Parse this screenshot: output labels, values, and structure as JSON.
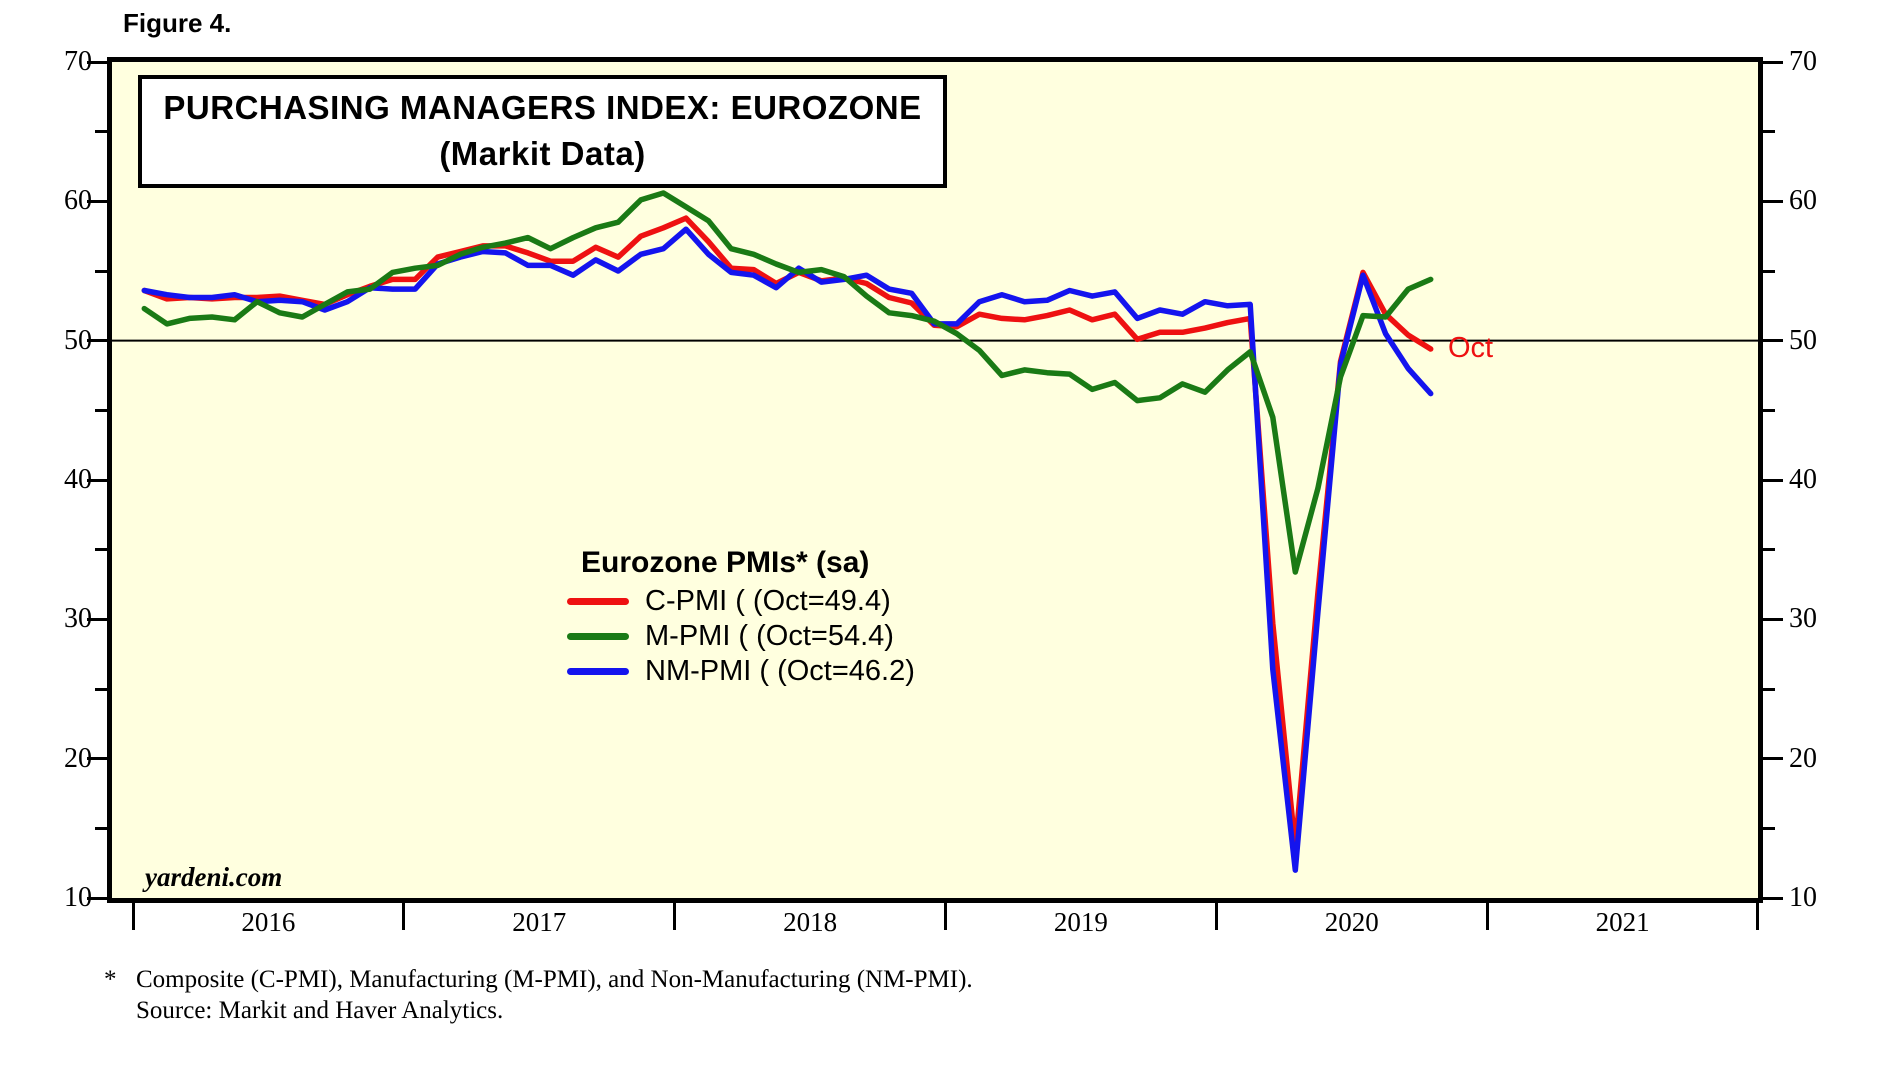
{
  "figure_label": "Figure 4.",
  "title_line1": "PURCHASING MANAGERS INDEX: EUROZONE",
  "title_line2": "(Markit Data)",
  "watermark": "yardeni.com",
  "annotation_oct": "Oct",
  "legend": {
    "header": "Eurozone PMIs* (sa)",
    "entries": [
      {
        "label": "C-PMI ( (Oct=49.4)",
        "color": "#EE1111"
      },
      {
        "label": "M-PMI ( (Oct=54.4)",
        "color": "#1A7A15"
      },
      {
        "label": "NM-PMI ( (Oct=46.2)",
        "color": "#1414EE"
      }
    ]
  },
  "footnote_star": "*",
  "footnote_line1": "Composite (C-PMI), Manufacturing (M-PMI), and Non-Manufacturing (NM-PMI).",
  "footnote_line2": "Source: Markit and Haver Analytics.",
  "chart_data": {
    "type": "line",
    "title": "PURCHASING MANAGERS INDEX: EUROZONE (Markit Data)",
    "x_monthly_from": "2016-01",
    "x_monthly_to": "2020-10",
    "ylim": [
      10,
      70
    ],
    "y_major_ticks": [
      70,
      60,
      50,
      40,
      30,
      20,
      10
    ],
    "y_minor_ticks": [
      65,
      55,
      45,
      35,
      25,
      15
    ],
    "x_year_labels": [
      "2016",
      "2017",
      "2018",
      "2019",
      "2020",
      "2021"
    ],
    "x_axis_years_shown": [
      2016,
      2022
    ],
    "reference_line": 50,
    "grid": "off",
    "legend_position": "center-left inside plot",
    "background_color": "#FFFFDF",
    "series": [
      {
        "name": "C-PMI",
        "color": "#EE1111",
        "latest_label": "Oct=49.4",
        "values": [
          53.6,
          53.0,
          53.1,
          53.0,
          53.1,
          53.1,
          53.2,
          52.9,
          52.6,
          53.3,
          53.9,
          54.4,
          54.4,
          56.0,
          56.4,
          56.8,
          56.8,
          56.3,
          55.7,
          55.7,
          56.7,
          56.0,
          57.5,
          58.1,
          58.8,
          57.1,
          55.2,
          55.1,
          54.1,
          54.9,
          54.3,
          54.5,
          54.1,
          53.1,
          52.7,
          51.1,
          51.0,
          51.9,
          51.6,
          51.5,
          51.8,
          52.2,
          51.5,
          51.9,
          50.1,
          50.6,
          50.6,
          50.9,
          51.3,
          51.6,
          29.7,
          13.6,
          31.9,
          48.5,
          54.9,
          51.9,
          50.4,
          49.4
        ]
      },
      {
        "name": "M-PMI",
        "color": "#1A7A15",
        "latest_label": "Oct=54.4",
        "values": [
          52.3,
          51.2,
          51.6,
          51.7,
          51.5,
          52.8,
          52.0,
          51.7,
          52.6,
          53.5,
          53.7,
          54.9,
          55.2,
          55.4,
          56.2,
          56.7,
          57.0,
          57.4,
          56.6,
          57.4,
          58.1,
          58.5,
          60.1,
          60.6,
          59.6,
          58.6,
          56.6,
          56.2,
          55.5,
          54.9,
          55.1,
          54.6,
          53.2,
          52.0,
          51.8,
          51.4,
          50.5,
          49.3,
          47.5,
          47.9,
          47.7,
          47.6,
          46.5,
          47.0,
          45.7,
          45.9,
          46.9,
          46.3,
          47.9,
          49.2,
          44.5,
          33.4,
          39.4,
          47.4,
          51.8,
          51.7,
          53.7,
          54.4
        ]
      },
      {
        "name": "NM-PMI",
        "color": "#1414EE",
        "latest_label": "Oct=46.2",
        "values": [
          53.6,
          53.3,
          53.1,
          53.1,
          53.3,
          52.8,
          52.9,
          52.8,
          52.2,
          52.8,
          53.8,
          53.7,
          53.7,
          55.5,
          56.0,
          56.4,
          56.3,
          55.4,
          55.4,
          54.7,
          55.8,
          55.0,
          56.2,
          56.6,
          58.0,
          56.2,
          54.9,
          54.7,
          53.8,
          55.2,
          54.2,
          54.4,
          54.7,
          53.7,
          53.4,
          51.2,
          51.2,
          52.8,
          53.3,
          52.8,
          52.9,
          53.6,
          53.2,
          53.5,
          51.6,
          52.2,
          51.9,
          52.8,
          52.5,
          52.6,
          26.4,
          12.0,
          30.5,
          48.3,
          54.7,
          50.5,
          48.0,
          46.2
        ]
      }
    ]
  }
}
